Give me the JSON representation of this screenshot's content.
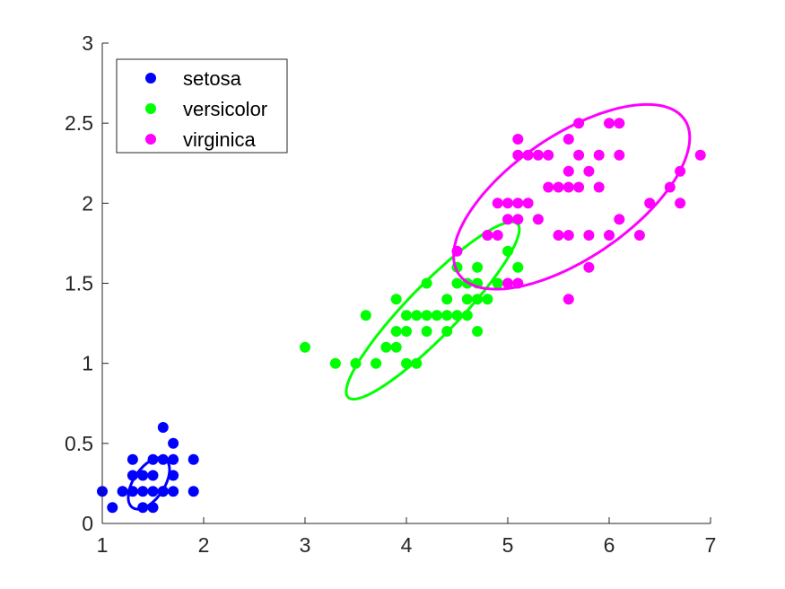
{
  "chart_data": {
    "type": "scatter",
    "title": "",
    "xlabel": "",
    "ylabel": "",
    "xlim": [
      1,
      7
    ],
    "ylim": [
      0,
      3
    ],
    "xticks": [
      "1",
      "2",
      "3",
      "4",
      "5",
      "6",
      "7"
    ],
    "yticks": [
      "0",
      "0.5",
      "1",
      "1.5",
      "2",
      "2.5",
      "3"
    ],
    "grid": false,
    "legend_position": "top-left",
    "series": [
      {
        "name": "setosa",
        "color": "#0000ff",
        "points": [
          [
            1.0,
            0.2
          ],
          [
            1.1,
            0.1
          ],
          [
            1.2,
            0.2
          ],
          [
            1.3,
            0.2
          ],
          [
            1.3,
            0.3
          ],
          [
            1.3,
            0.4
          ],
          [
            1.4,
            0.2
          ],
          [
            1.4,
            0.3
          ],
          [
            1.5,
            0.1
          ],
          [
            1.5,
            0.2
          ],
          [
            1.5,
            0.3
          ],
          [
            1.5,
            0.4
          ],
          [
            1.6,
            0.2
          ],
          [
            1.6,
            0.4
          ],
          [
            1.6,
            0.6
          ],
          [
            1.7,
            0.2
          ],
          [
            1.7,
            0.3
          ],
          [
            1.7,
            0.4
          ],
          [
            1.7,
            0.5
          ],
          [
            1.9,
            0.2
          ],
          [
            1.9,
            0.4
          ],
          [
            1.4,
            0.1
          ],
          [
            1.6,
            0.2
          ]
        ],
        "ellipse": {
          "center": [
            1.46,
            0.25
          ],
          "semi_axes": [
            0.23,
            0.12
          ],
          "angle_deg": 33
        }
      },
      {
        "name": "versicolor",
        "color": "#00ff00",
        "points": [
          [
            3.0,
            1.1
          ],
          [
            3.3,
            1.0
          ],
          [
            3.5,
            1.0
          ],
          [
            3.6,
            1.3
          ],
          [
            3.7,
            1.0
          ],
          [
            3.8,
            1.1
          ],
          [
            3.9,
            1.1
          ],
          [
            3.9,
            1.2
          ],
          [
            3.9,
            1.4
          ],
          [
            4.0,
            1.0
          ],
          [
            4.0,
            1.2
          ],
          [
            4.0,
            1.3
          ],
          [
            4.1,
            1.0
          ],
          [
            4.1,
            1.3
          ],
          [
            4.2,
            1.2
          ],
          [
            4.2,
            1.3
          ],
          [
            4.2,
            1.5
          ],
          [
            4.3,
            1.3
          ],
          [
            4.4,
            1.2
          ],
          [
            4.4,
            1.3
          ],
          [
            4.4,
            1.4
          ],
          [
            4.5,
            1.3
          ],
          [
            4.5,
            1.5
          ],
          [
            4.5,
            1.6
          ],
          [
            4.6,
            1.3
          ],
          [
            4.6,
            1.4
          ],
          [
            4.6,
            1.5
          ],
          [
            4.7,
            1.2
          ],
          [
            4.7,
            1.4
          ],
          [
            4.7,
            1.5
          ],
          [
            4.7,
            1.6
          ],
          [
            4.8,
            1.4
          ],
          [
            4.8,
            1.8
          ],
          [
            4.9,
            1.5
          ],
          [
            5.0,
            1.7
          ],
          [
            5.1,
            1.6
          ]
        ],
        "ellipse": {
          "center": [
            4.26,
            1.33
          ],
          "semi_axes": [
            1.0,
            0.19
          ],
          "angle_deg": 32
        }
      },
      {
        "name": "virginica",
        "color": "#ff00ff",
        "points": [
          [
            4.5,
            1.7
          ],
          [
            4.8,
            1.8
          ],
          [
            4.9,
            1.8
          ],
          [
            4.9,
            2.0
          ],
          [
            5.0,
            1.5
          ],
          [
            5.0,
            1.9
          ],
          [
            5.0,
            2.0
          ],
          [
            5.1,
            1.5
          ],
          [
            5.1,
            1.9
          ],
          [
            5.1,
            2.0
          ],
          [
            5.1,
            2.3
          ],
          [
            5.1,
            2.4
          ],
          [
            5.2,
            2.0
          ],
          [
            5.2,
            2.3
          ],
          [
            5.3,
            1.9
          ],
          [
            5.3,
            2.3
          ],
          [
            5.4,
            2.1
          ],
          [
            5.4,
            2.3
          ],
          [
            5.5,
            1.8
          ],
          [
            5.5,
            2.1
          ],
          [
            5.6,
            1.4
          ],
          [
            5.6,
            1.8
          ],
          [
            5.6,
            2.1
          ],
          [
            5.6,
            2.2
          ],
          [
            5.6,
            2.4
          ],
          [
            5.7,
            2.1
          ],
          [
            5.7,
            2.3
          ],
          [
            5.7,
            2.5
          ],
          [
            5.8,
            1.6
          ],
          [
            5.8,
            1.8
          ],
          [
            5.8,
            2.2
          ],
          [
            5.9,
            2.1
          ],
          [
            5.9,
            2.3
          ],
          [
            6.0,
            1.8
          ],
          [
            6.0,
            2.5
          ],
          [
            6.1,
            1.9
          ],
          [
            6.1,
            2.3
          ],
          [
            6.1,
            2.5
          ],
          [
            6.3,
            1.8
          ],
          [
            6.4,
            2.0
          ],
          [
            6.6,
            2.1
          ],
          [
            6.7,
            2.0
          ],
          [
            6.7,
            2.2
          ],
          [
            6.9,
            2.3
          ]
        ],
        "ellipse": {
          "center": [
            5.63,
            2.04
          ],
          "semi_axes": [
            1.23,
            0.42
          ],
          "angle_deg": 20
        }
      }
    ]
  }
}
